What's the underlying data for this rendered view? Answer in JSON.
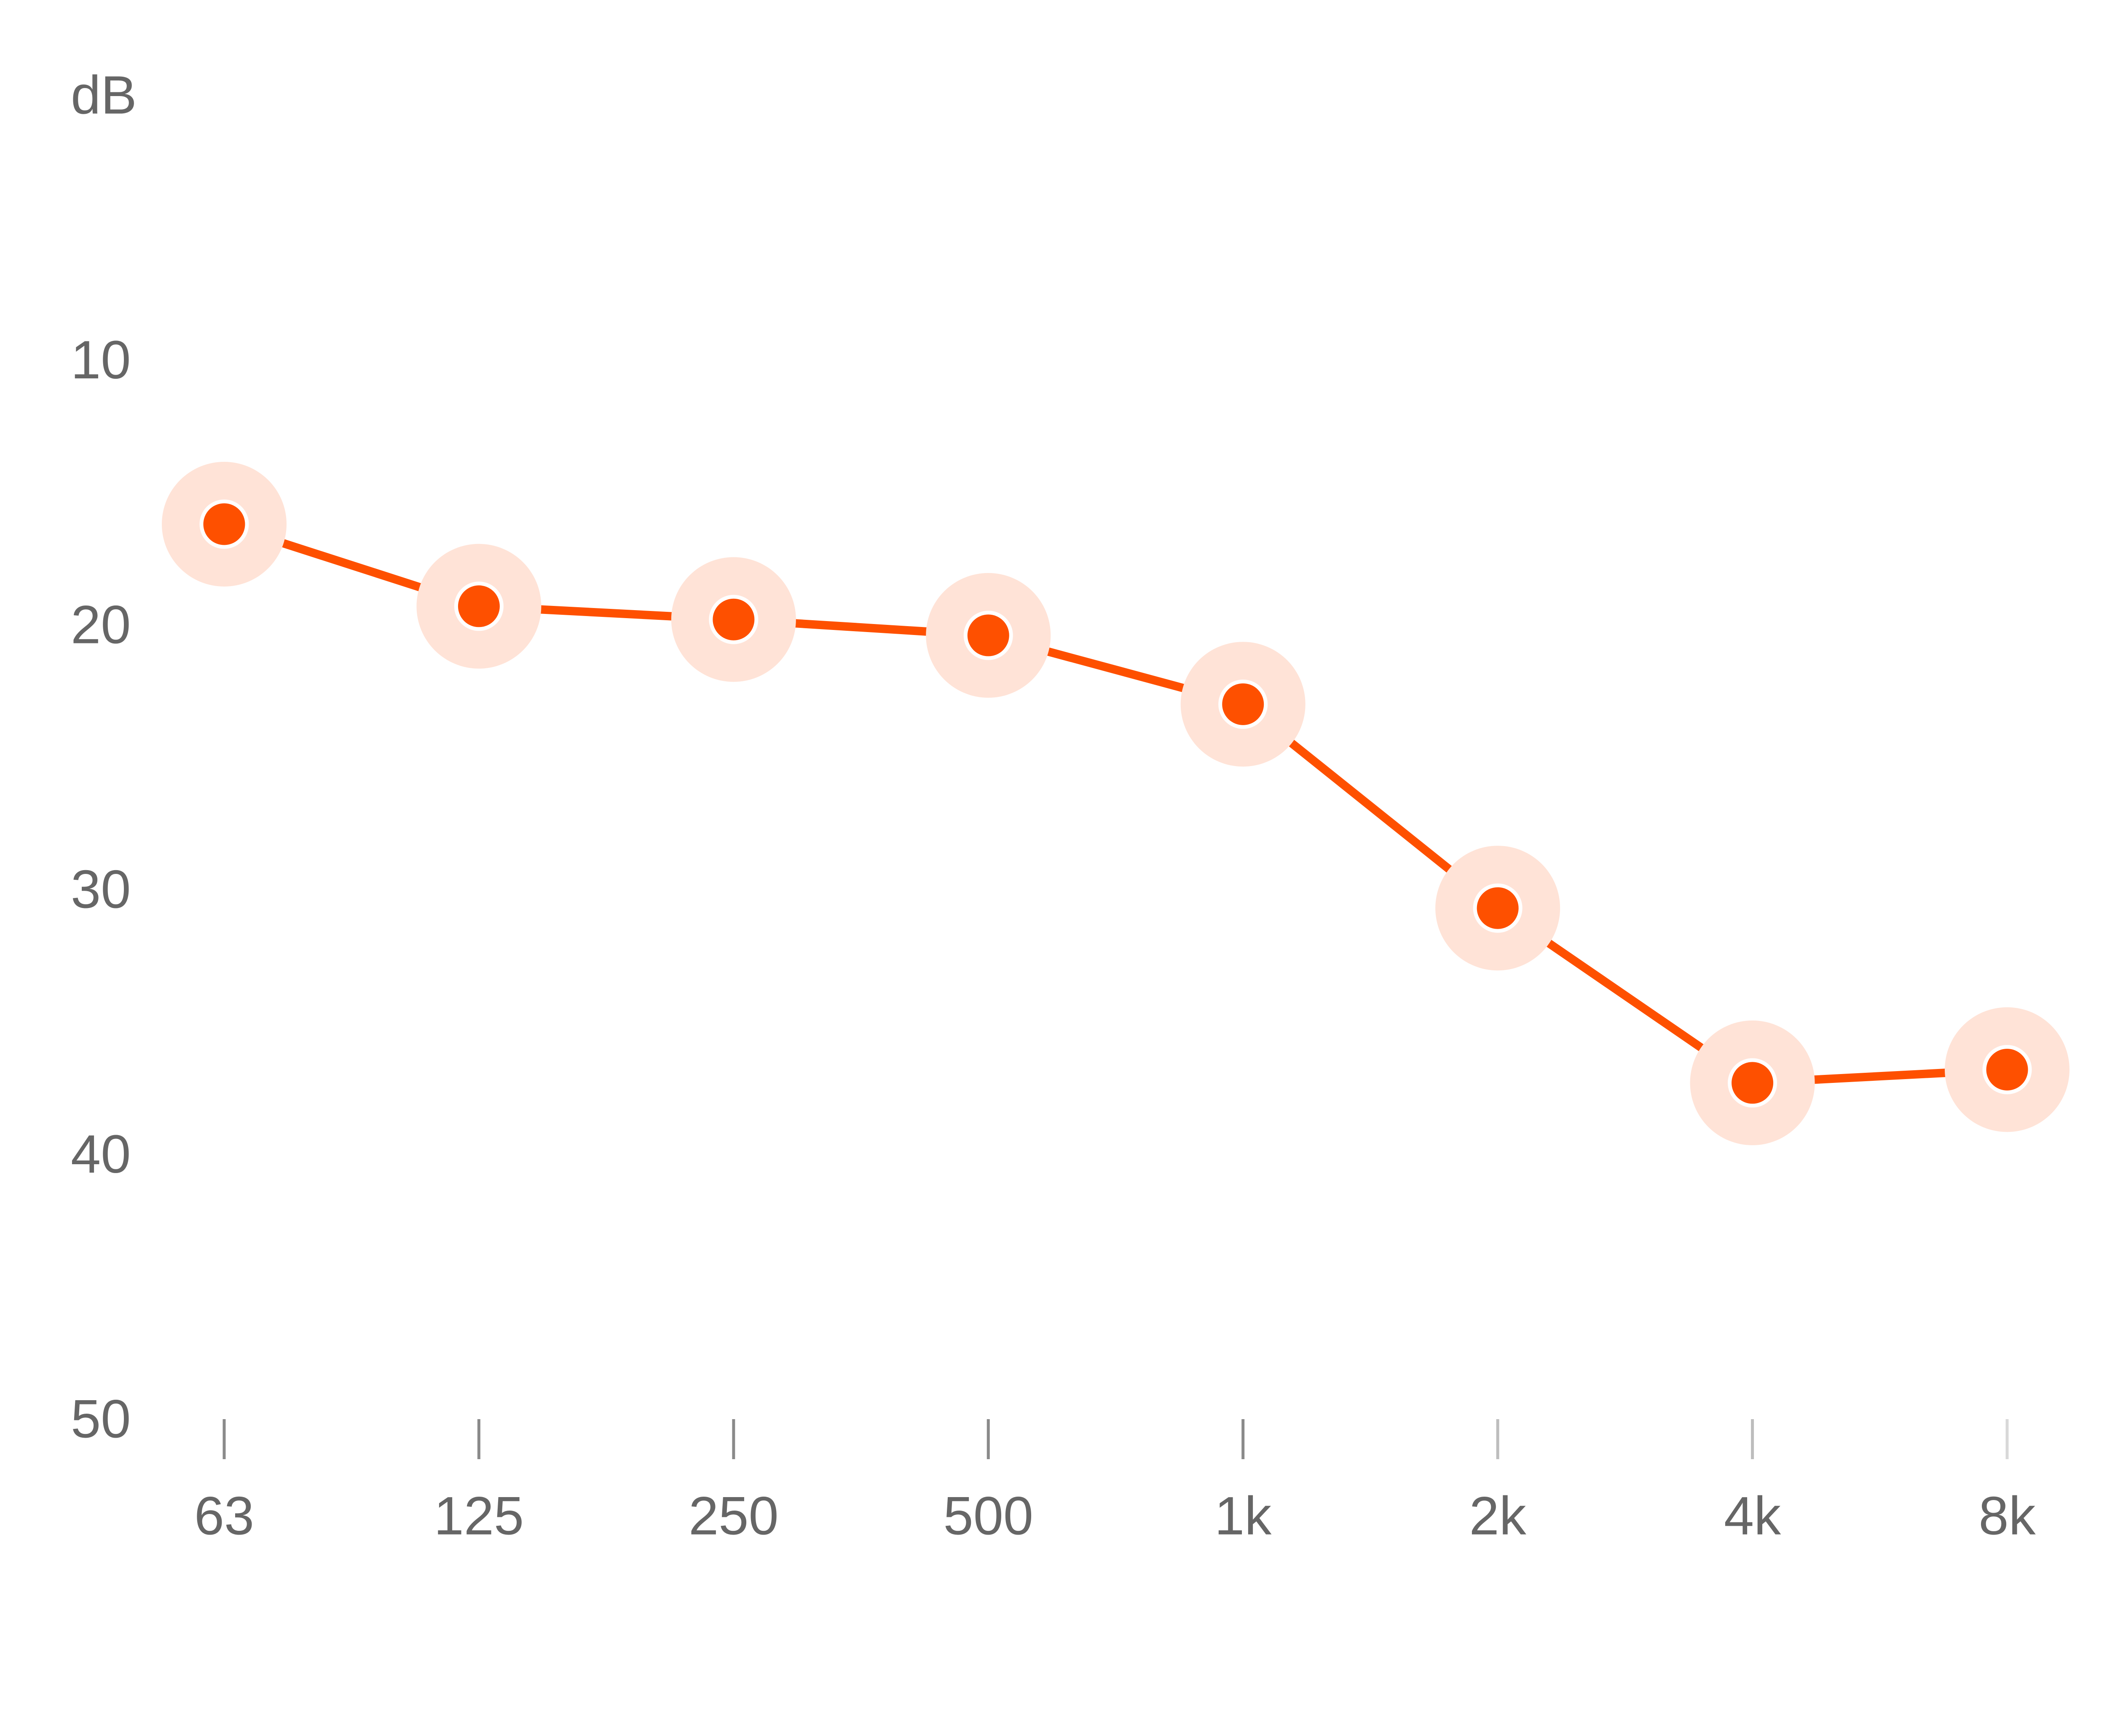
{
  "chart_data": {
    "type": "line",
    "title": "",
    "xlabel": "",
    "ylabel": "dB",
    "categories": [
      "63",
      "125",
      "250",
      "500",
      "1k",
      "2k",
      "4k",
      "8k"
    ],
    "series": [
      {
        "values": [
          16.2,
          19.3,
          19.8,
          20.4,
          23.0,
          30.7,
          37.3,
          36.8
        ],
        "color": "#fe5000",
        "halo_color": "#ffe3d7"
      }
    ],
    "ylim": [
      0,
      50
    ],
    "y_reversed": true,
    "yticks": [
      10,
      20,
      30,
      40,
      50
    ],
    "ytick_labels": [
      "10",
      "20",
      "30",
      "40",
      "50"
    ],
    "grid": true,
    "legend": "none",
    "colors": {
      "grid": "#7a7a7a",
      "text": "#666666",
      "line": "#fe5000",
      "halo": "#ffe3d7",
      "marker_outline": "#ffffff"
    }
  }
}
